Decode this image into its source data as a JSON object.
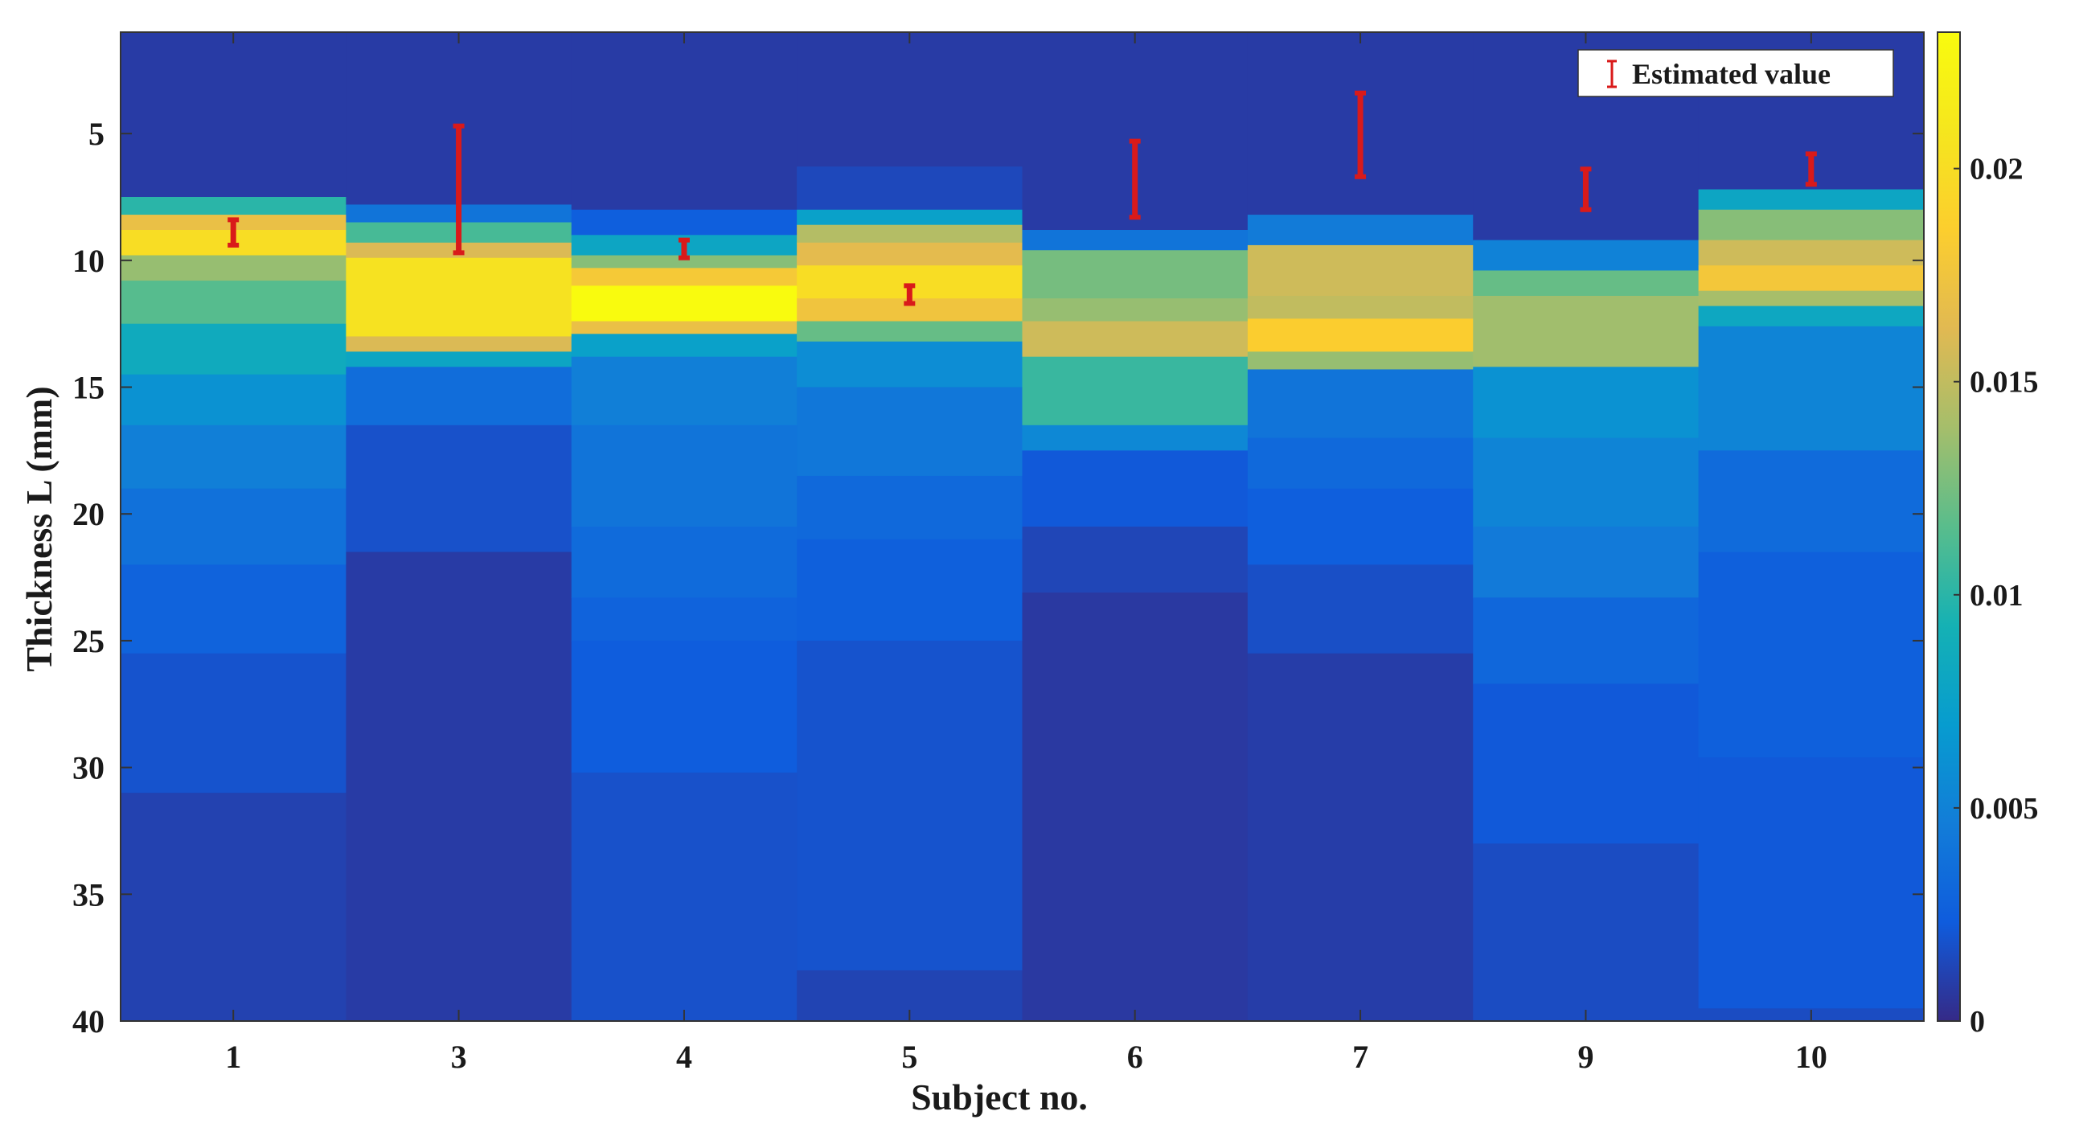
{
  "chart_data": {
    "type": "heatmap",
    "title": "",
    "xlabel": "Subject no.",
    "ylabel": "Thickness L (mm)",
    "categories": [
      "1",
      "3",
      "4",
      "5",
      "6",
      "7",
      "9",
      "10"
    ],
    "y_axis": {
      "range": [
        1,
        40
      ],
      "reversed": true,
      "ticks": [
        5,
        10,
        15,
        20,
        25,
        30,
        35,
        40
      ],
      "tick_labels": [
        "5",
        "10",
        "15",
        "20",
        "25",
        "30",
        "35",
        "40"
      ]
    },
    "colorbar": {
      "colormap": "parula",
      "range": [
        0,
        0.0232
      ],
      "ticks": [
        0,
        0.005,
        0.01,
        0.015,
        0.02
      ],
      "tick_labels": [
        "0",
        "0.005",
        "0.01",
        "0.015",
        "0.02"
      ]
    },
    "legend": {
      "position": "top-right",
      "entries": [
        {
          "label": "Estimated value",
          "color": "#d91a1a",
          "marker": "errorbar"
        }
      ]
    },
    "grid": false,
    "columns": [
      {
        "subject": "1",
        "bands": [
          [
            1,
            7.5,
            0.0008
          ],
          [
            7.5,
            8.2,
            0.01
          ],
          [
            8.2,
            8.8,
            0.017
          ],
          [
            8.8,
            9.8,
            0.02
          ],
          [
            9.8,
            10.8,
            0.0135
          ],
          [
            10.8,
            12.5,
            0.0115
          ],
          [
            12.5,
            14.5,
            0.0085
          ],
          [
            14.5,
            16.5,
            0.0062
          ],
          [
            16.5,
            19,
            0.0048
          ],
          [
            19,
            22,
            0.0038
          ],
          [
            22,
            25.5,
            0.0028
          ],
          [
            25.5,
            31,
            0.0019
          ],
          [
            31,
            40,
            0.0011
          ]
        ]
      },
      {
        "subject": "3",
        "bands": [
          [
            1,
            7.8,
            0.0008
          ],
          [
            7.8,
            8.5,
            0.004
          ],
          [
            8.5,
            9.3,
            0.011
          ],
          [
            9.3,
            9.9,
            0.016
          ],
          [
            9.9,
            13.0,
            0.0205
          ],
          [
            13.0,
            13.6,
            0.016
          ],
          [
            13.6,
            14.2,
            0.008
          ],
          [
            14.2,
            16.5,
            0.0035
          ],
          [
            16.5,
            21.5,
            0.0018
          ],
          [
            21.5,
            40,
            0.0008
          ]
        ]
      },
      {
        "subject": "4",
        "bands": [
          [
            1,
            8.0,
            0.0008
          ],
          [
            8.0,
            9.0,
            0.0025
          ],
          [
            9.0,
            9.8,
            0.008
          ],
          [
            9.8,
            10.3,
            0.013
          ],
          [
            10.3,
            11.0,
            0.018
          ],
          [
            11.0,
            12.4,
            0.0232
          ],
          [
            12.4,
            12.9,
            0.017
          ],
          [
            12.9,
            13.8,
            0.0075
          ],
          [
            13.8,
            16.5,
            0.0048
          ],
          [
            16.5,
            20.5,
            0.004
          ],
          [
            20.5,
            23.3,
            0.0034
          ],
          [
            23.3,
            25.0,
            0.0028
          ],
          [
            25.0,
            30.2,
            0.0024
          ],
          [
            30.2,
            40,
            0.0018
          ]
        ]
      },
      {
        "subject": "5",
        "bands": [
          [
            1,
            6.3,
            0.0008
          ],
          [
            6.3,
            8.0,
            0.0014
          ],
          [
            8.0,
            8.6,
            0.0075
          ],
          [
            8.6,
            9.3,
            0.0145
          ],
          [
            9.3,
            10.2,
            0.0165
          ],
          [
            10.2,
            11.5,
            0.02
          ],
          [
            11.5,
            12.4,
            0.0175
          ],
          [
            12.4,
            13.2,
            0.012
          ],
          [
            13.2,
            15.0,
            0.0058
          ],
          [
            15.0,
            18.5,
            0.0042
          ],
          [
            18.5,
            21.0,
            0.0032
          ],
          [
            21.0,
            25.0,
            0.0026
          ],
          [
            25.0,
            38.0,
            0.0019
          ],
          [
            38.0,
            40,
            0.0012
          ]
        ]
      },
      {
        "subject": "6",
        "bands": [
          [
            1,
            8.8,
            0.0008
          ],
          [
            8.8,
            9.6,
            0.004
          ],
          [
            9.6,
            11.5,
            0.0125
          ],
          [
            11.5,
            12.4,
            0.0135
          ],
          [
            12.4,
            13.8,
            0.0155
          ],
          [
            13.8,
            16.5,
            0.0105
          ],
          [
            16.5,
            17.5,
            0.0055
          ],
          [
            17.5,
            20.5,
            0.0022
          ],
          [
            20.5,
            23.1,
            0.0013
          ],
          [
            23.1,
            40,
            0.0007
          ]
        ]
      },
      {
        "subject": "7",
        "bands": [
          [
            1,
            8.2,
            0.0008
          ],
          [
            8.2,
            9.4,
            0.0045
          ],
          [
            9.4,
            11.4,
            0.0155
          ],
          [
            11.4,
            12.3,
            0.015
          ],
          [
            12.3,
            13.6,
            0.0185
          ],
          [
            13.6,
            14.3,
            0.0135
          ],
          [
            14.3,
            17.0,
            0.004
          ],
          [
            17.0,
            19.0,
            0.0032
          ],
          [
            19.0,
            22.0,
            0.0025
          ],
          [
            22.0,
            25.5,
            0.0017
          ],
          [
            25.5,
            40,
            0.0009
          ]
        ]
      },
      {
        "subject": "9",
        "bands": [
          [
            1,
            9.2,
            0.0008
          ],
          [
            9.2,
            10.4,
            0.005
          ],
          [
            10.4,
            11.4,
            0.012
          ],
          [
            11.4,
            14.2,
            0.0138
          ],
          [
            14.2,
            17.0,
            0.0062
          ],
          [
            17.0,
            20.5,
            0.0052
          ],
          [
            20.5,
            23.3,
            0.0044
          ],
          [
            23.3,
            26.7,
            0.0031
          ],
          [
            26.7,
            33.0,
            0.0022
          ],
          [
            33.0,
            40,
            0.0016
          ]
        ]
      },
      {
        "subject": "10",
        "bands": [
          [
            1,
            7.2,
            0.0008
          ],
          [
            7.2,
            8.0,
            0.008
          ],
          [
            8.0,
            9.2,
            0.013
          ],
          [
            9.2,
            10.2,
            0.0155
          ],
          [
            10.2,
            11.2,
            0.0178
          ],
          [
            11.2,
            11.8,
            0.014
          ],
          [
            11.8,
            12.6,
            0.0082
          ],
          [
            12.6,
            17.5,
            0.0052
          ],
          [
            17.5,
            21.5,
            0.0034
          ],
          [
            21.5,
            29.6,
            0.0026
          ],
          [
            29.6,
            39.5,
            0.0022
          ],
          [
            39.5,
            40,
            0.0016
          ]
        ]
      }
    ],
    "estimated_values": [
      {
        "subject": "1",
        "low": 8.4,
        "high": 9.4
      },
      {
        "subject": "3",
        "low": 4.7,
        "high": 9.7
      },
      {
        "subject": "4",
        "low": 9.2,
        "high": 9.9
      },
      {
        "subject": "5",
        "low": 11.0,
        "high": 11.7
      },
      {
        "subject": "6",
        "low": 5.3,
        "high": 8.3
      },
      {
        "subject": "7",
        "low": 3.4,
        "high": 6.7
      },
      {
        "subject": "9",
        "low": 6.4,
        "high": 8.0
      },
      {
        "subject": "10",
        "low": 5.8,
        "high": 7.0
      }
    ]
  }
}
